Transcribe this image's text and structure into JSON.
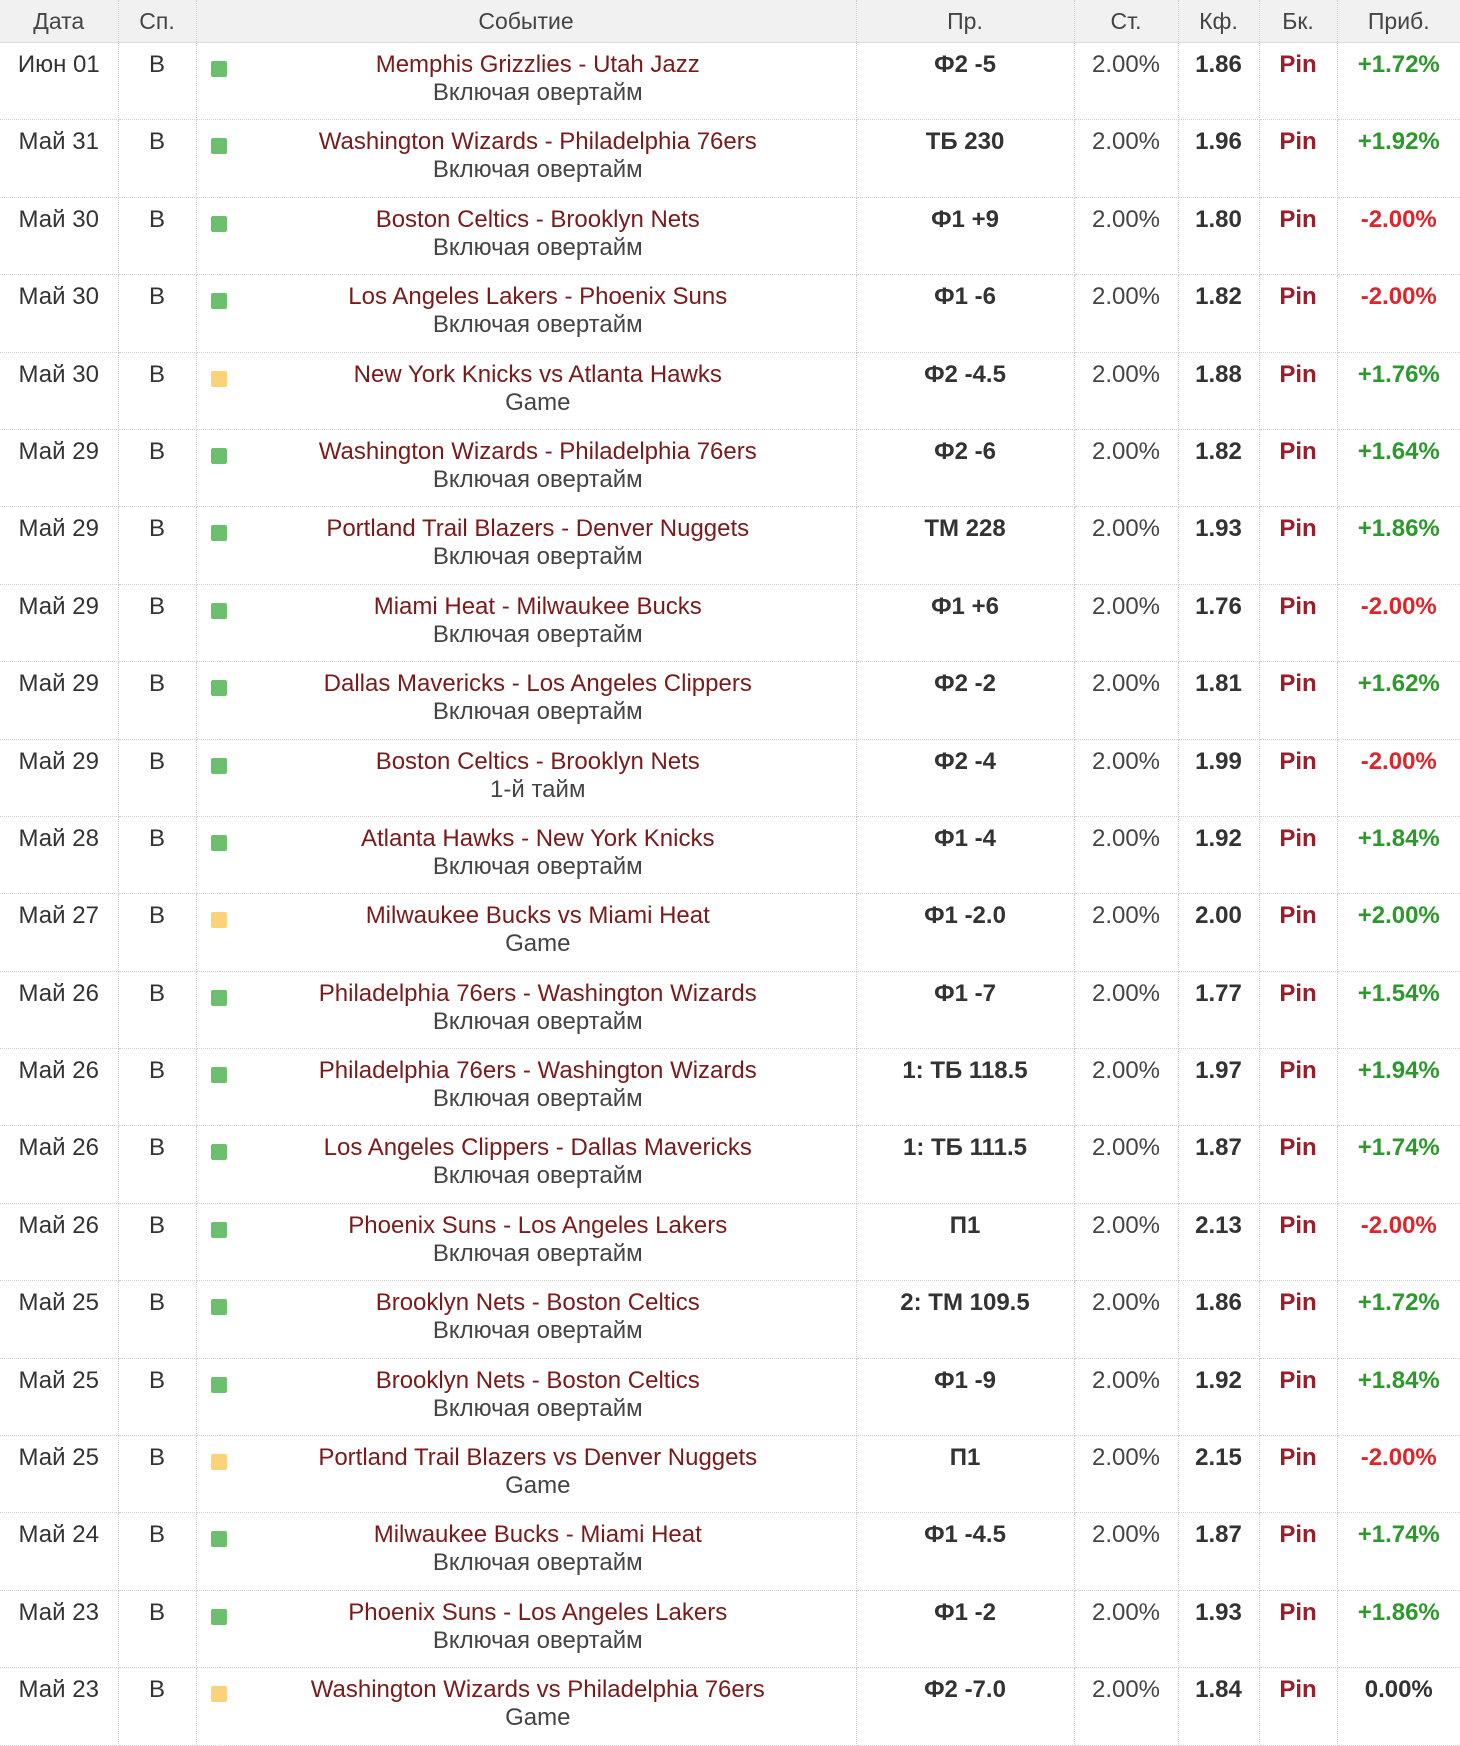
{
  "colors": {
    "square_green": "#6cbf6c",
    "square_yellow": "#f9d27a",
    "profit_positive": "#2b9a2b",
    "profit_negative": "#e0242a",
    "profit_zero": "#333333"
  },
  "headers": {
    "date": "Дата",
    "sport": "Сп.",
    "event": "Событие",
    "pick": "Пр.",
    "stake": "Ст.",
    "coef": "Кф.",
    "bookmaker": "Бк.",
    "profit": "Приб."
  },
  "rows": [
    {
      "date": "Июн 01",
      "sport": "B",
      "status": "green",
      "event": "Memphis Grizzlies - Utah Jazz",
      "sub": "Включая овертайм",
      "pick": "Ф2 -5",
      "stake": "2.00%",
      "coef": "1.86",
      "bookmaker": "Pin",
      "profit": "+1.72%",
      "profit_sign": "positive"
    },
    {
      "date": "Май 31",
      "sport": "B",
      "status": "green",
      "event": "Washington Wizards - Philadelphia 76ers",
      "sub": "Включая овертайм",
      "pick": "ТБ 230",
      "stake": "2.00%",
      "coef": "1.96",
      "bookmaker": "Pin",
      "profit": "+1.92%",
      "profit_sign": "positive"
    },
    {
      "date": "Май 30",
      "sport": "B",
      "status": "green",
      "event": "Boston Celtics - Brooklyn Nets",
      "sub": "Включая овертайм",
      "pick": "Ф1 +9",
      "stake": "2.00%",
      "coef": "1.80",
      "bookmaker": "Pin",
      "profit": "-2.00%",
      "profit_sign": "negative"
    },
    {
      "date": "Май 30",
      "sport": "B",
      "status": "green",
      "event": "Los Angeles Lakers - Phoenix Suns",
      "sub": "Включая овертайм",
      "pick": "Ф1 -6",
      "stake": "2.00%",
      "coef": "1.82",
      "bookmaker": "Pin",
      "profit": "-2.00%",
      "profit_sign": "negative"
    },
    {
      "date": "Май 30",
      "sport": "B",
      "status": "yellow",
      "event": "New York Knicks vs Atlanta Hawks",
      "sub": "Game",
      "pick": "Ф2 -4.5",
      "stake": "2.00%",
      "coef": "1.88",
      "bookmaker": "Pin",
      "profit": "+1.76%",
      "profit_sign": "positive"
    },
    {
      "date": "Май 29",
      "sport": "B",
      "status": "green",
      "event": "Washington Wizards - Philadelphia 76ers",
      "sub": "Включая овертайм",
      "pick": "Ф2 -6",
      "stake": "2.00%",
      "coef": "1.82",
      "bookmaker": "Pin",
      "profit": "+1.64%",
      "profit_sign": "positive"
    },
    {
      "date": "Май 29",
      "sport": "B",
      "status": "green",
      "event": "Portland Trail Blazers - Denver Nuggets",
      "sub": "Включая овертайм",
      "pick": "ТМ 228",
      "stake": "2.00%",
      "coef": "1.93",
      "bookmaker": "Pin",
      "profit": "+1.86%",
      "profit_sign": "positive"
    },
    {
      "date": "Май 29",
      "sport": "B",
      "status": "green",
      "event": "Miami Heat - Milwaukee Bucks",
      "sub": "Включая овертайм",
      "pick": "Ф1 +6",
      "stake": "2.00%",
      "coef": "1.76",
      "bookmaker": "Pin",
      "profit": "-2.00%",
      "profit_sign": "negative"
    },
    {
      "date": "Май 29",
      "sport": "B",
      "status": "green",
      "event": "Dallas Mavericks - Los Angeles Clippers",
      "sub": "Включая овертайм",
      "pick": "Ф2 -2",
      "stake": "2.00%",
      "coef": "1.81",
      "bookmaker": "Pin",
      "profit": "+1.62%",
      "profit_sign": "positive"
    },
    {
      "date": "Май 29",
      "sport": "B",
      "status": "green",
      "event": "Boston Celtics - Brooklyn Nets",
      "sub": "1-й тайм",
      "pick": "Ф2 -4",
      "stake": "2.00%",
      "coef": "1.99",
      "bookmaker": "Pin",
      "profit": "-2.00%",
      "profit_sign": "negative"
    },
    {
      "date": "Май 28",
      "sport": "B",
      "status": "green",
      "event": "Atlanta Hawks - New York Knicks",
      "sub": "Включая овертайм",
      "pick": "Ф1 -4",
      "stake": "2.00%",
      "coef": "1.92",
      "bookmaker": "Pin",
      "profit": "+1.84%",
      "profit_sign": "positive"
    },
    {
      "date": "Май 27",
      "sport": "B",
      "status": "yellow",
      "event": "Milwaukee Bucks vs Miami Heat",
      "sub": "Game",
      "pick": "Ф1 -2.0",
      "stake": "2.00%",
      "coef": "2.00",
      "bookmaker": "Pin",
      "profit": "+2.00%",
      "profit_sign": "positive"
    },
    {
      "date": "Май 26",
      "sport": "B",
      "status": "green",
      "event": "Philadelphia 76ers - Washington Wizards",
      "sub": "Включая овертайм",
      "pick": "Ф1 -7",
      "stake": "2.00%",
      "coef": "1.77",
      "bookmaker": "Pin",
      "profit": "+1.54%",
      "profit_sign": "positive"
    },
    {
      "date": "Май 26",
      "sport": "B",
      "status": "green",
      "event": "Philadelphia 76ers - Washington Wizards",
      "sub": "Включая овертайм",
      "pick": "1: ТБ 118.5",
      "stake": "2.00%",
      "coef": "1.97",
      "bookmaker": "Pin",
      "profit": "+1.94%",
      "profit_sign": "positive"
    },
    {
      "date": "Май 26",
      "sport": "B",
      "status": "green",
      "event": "Los Angeles Clippers - Dallas Mavericks",
      "sub": "Включая овертайм",
      "pick": "1: ТБ 111.5",
      "stake": "2.00%",
      "coef": "1.87",
      "bookmaker": "Pin",
      "profit": "+1.74%",
      "profit_sign": "positive"
    },
    {
      "date": "Май 26",
      "sport": "B",
      "status": "green",
      "event": "Phoenix Suns - Los Angeles Lakers",
      "sub": "Включая овертайм",
      "pick": "П1",
      "stake": "2.00%",
      "coef": "2.13",
      "bookmaker": "Pin",
      "profit": "-2.00%",
      "profit_sign": "negative"
    },
    {
      "date": "Май 25",
      "sport": "B",
      "status": "green",
      "event": "Brooklyn Nets - Boston Celtics",
      "sub": "Включая овертайм",
      "pick": "2: ТМ 109.5",
      "stake": "2.00%",
      "coef": "1.86",
      "bookmaker": "Pin",
      "profit": "+1.72%",
      "profit_sign": "positive"
    },
    {
      "date": "Май 25",
      "sport": "B",
      "status": "green",
      "event": "Brooklyn Nets - Boston Celtics",
      "sub": "Включая овертайм",
      "pick": "Ф1 -9",
      "stake": "2.00%",
      "coef": "1.92",
      "bookmaker": "Pin",
      "profit": "+1.84%",
      "profit_sign": "positive"
    },
    {
      "date": "Май 25",
      "sport": "B",
      "status": "yellow",
      "event": "Portland Trail Blazers vs Denver Nuggets",
      "sub": "Game",
      "pick": "П1",
      "stake": "2.00%",
      "coef": "2.15",
      "bookmaker": "Pin",
      "profit": "-2.00%",
      "profit_sign": "negative"
    },
    {
      "date": "Май 24",
      "sport": "B",
      "status": "green",
      "event": "Milwaukee Bucks - Miami Heat",
      "sub": "Включая овертайм",
      "pick": "Ф1 -4.5",
      "stake": "2.00%",
      "coef": "1.87",
      "bookmaker": "Pin",
      "profit": "+1.74%",
      "profit_sign": "positive"
    },
    {
      "date": "Май 23",
      "sport": "B",
      "status": "green",
      "event": "Phoenix Suns - Los Angeles Lakers",
      "sub": "Включая овертайм",
      "pick": "Ф1 -2",
      "stake": "2.00%",
      "coef": "1.93",
      "bookmaker": "Pin",
      "profit": "+1.86%",
      "profit_sign": "positive"
    },
    {
      "date": "Май 23",
      "sport": "B",
      "status": "yellow",
      "event": "Washington Wizards vs Philadelphia 76ers",
      "sub": "Game",
      "pick": "Ф2 -7.0",
      "stake": "2.00%",
      "coef": "1.84",
      "bookmaker": "Pin",
      "profit": "0.00%",
      "profit_sign": "zero"
    }
  ]
}
